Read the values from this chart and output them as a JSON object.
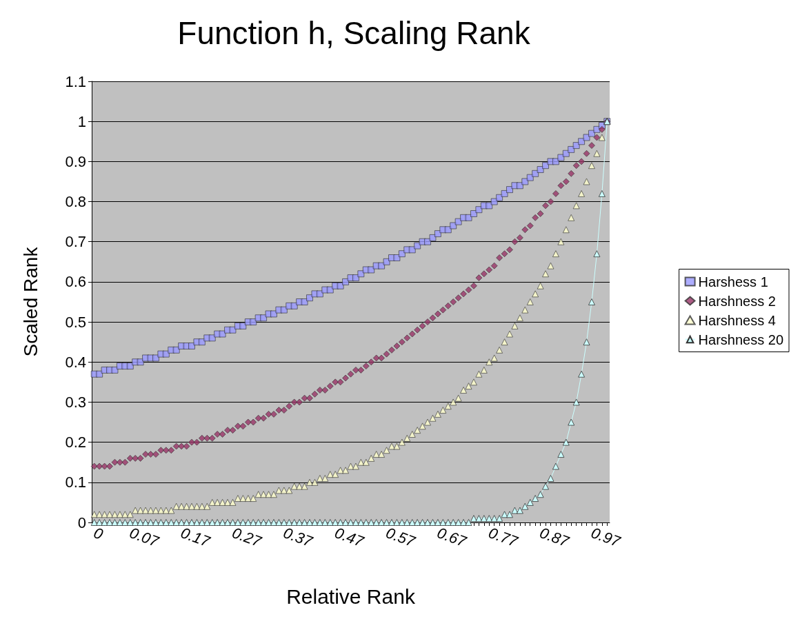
{
  "chart_data": {
    "type": "line",
    "title": "Function h, Scaling Rank",
    "xlabel": "Relative Rank",
    "ylabel": "Scaled Rank",
    "categories": [
      "0",
      null,
      null,
      null,
      null,
      null,
      null,
      "0.07",
      null,
      null,
      null,
      null,
      null,
      null,
      null,
      null,
      null,
      "0.17",
      null,
      null,
      null,
      null,
      null,
      null,
      null,
      null,
      null,
      "0.27",
      null,
      null,
      null,
      null,
      null,
      null,
      null,
      null,
      null,
      "0.37",
      null,
      null,
      null,
      null,
      null,
      null,
      null,
      null,
      null,
      "0.47",
      null,
      null,
      null,
      null,
      null,
      null,
      null,
      null,
      null,
      "0.57",
      null,
      null,
      null,
      null,
      null,
      null,
      null,
      null,
      null,
      "0.67",
      null,
      null,
      null,
      null,
      null,
      null,
      null,
      null,
      null,
      "0.77",
      null,
      null,
      null,
      null,
      null,
      null,
      null,
      null,
      null,
      "0.87",
      null,
      null,
      null,
      null,
      null,
      null,
      null,
      null,
      null,
      "0.97",
      null,
      null,
      null
    ],
    "series": [
      {
        "name": "Harshess 1",
        "type": "scatter",
        "marker": "square",
        "color": "#9999ff",
        "values": [
          0.37,
          0.37,
          0.38,
          0.38,
          0.38,
          0.39,
          0.39,
          0.39,
          0.4,
          0.4,
          0.41,
          0.41,
          0.41,
          0.42,
          0.42,
          0.43,
          0.43,
          0.44,
          0.44,
          0.44,
          0.45,
          0.45,
          0.46,
          0.46,
          0.47,
          0.47,
          0.48,
          0.48,
          0.49,
          0.49,
          0.5,
          0.5,
          0.51,
          0.51,
          0.52,
          0.52,
          0.53,
          0.53,
          0.54,
          0.54,
          0.55,
          0.55,
          0.56,
          0.57,
          0.57,
          0.58,
          0.58,
          0.59,
          0.59,
          0.6,
          0.61,
          0.61,
          0.62,
          0.63,
          0.63,
          0.64,
          0.64,
          0.65,
          0.66,
          0.66,
          0.67,
          0.68,
          0.68,
          0.69,
          0.7,
          0.7,
          0.71,
          0.72,
          0.73,
          0.73,
          0.74,
          0.75,
          0.76,
          0.76,
          0.77,
          0.78,
          0.79,
          0.79,
          0.8,
          0.81,
          0.82,
          0.83,
          0.84,
          0.84,
          0.85,
          0.86,
          0.87,
          0.88,
          0.89,
          0.9,
          0.9,
          0.91,
          0.92,
          0.93,
          0.94,
          0.95,
          0.96,
          0.97,
          0.98,
          0.99,
          1.0
        ]
      },
      {
        "name": "Harshness 2",
        "type": "scatter",
        "marker": "diamond",
        "color": "#993366",
        "values": [
          0.14,
          0.14,
          0.14,
          0.14,
          0.15,
          0.15,
          0.15,
          0.16,
          0.16,
          0.16,
          0.17,
          0.17,
          0.17,
          0.18,
          0.18,
          0.18,
          0.19,
          0.19,
          0.19,
          0.2,
          0.2,
          0.21,
          0.21,
          0.21,
          0.22,
          0.22,
          0.23,
          0.23,
          0.24,
          0.24,
          0.25,
          0.25,
          0.26,
          0.26,
          0.27,
          0.27,
          0.28,
          0.28,
          0.29,
          0.3,
          0.3,
          0.31,
          0.31,
          0.32,
          0.33,
          0.33,
          0.34,
          0.35,
          0.35,
          0.36,
          0.37,
          0.38,
          0.38,
          0.39,
          0.4,
          0.41,
          0.41,
          0.42,
          0.43,
          0.44,
          0.45,
          0.46,
          0.47,
          0.48,
          0.49,
          0.5,
          0.51,
          0.52,
          0.53,
          0.54,
          0.55,
          0.56,
          0.57,
          0.58,
          0.59,
          0.61,
          0.62,
          0.63,
          0.64,
          0.66,
          0.67,
          0.68,
          0.7,
          0.71,
          0.73,
          0.74,
          0.76,
          0.77,
          0.79,
          0.8,
          0.82,
          0.84,
          0.85,
          0.87,
          0.89,
          0.9,
          0.92,
          0.94,
          0.96,
          0.98,
          1.0
        ]
      },
      {
        "name": "Harshness 4",
        "type": "scatter",
        "marker": "triangle",
        "color": "#ffffcc",
        "values": [
          0.02,
          0.02,
          0.02,
          0.02,
          0.02,
          0.02,
          0.02,
          0.02,
          0.03,
          0.03,
          0.03,
          0.03,
          0.03,
          0.03,
          0.03,
          0.03,
          0.04,
          0.04,
          0.04,
          0.04,
          0.04,
          0.04,
          0.04,
          0.05,
          0.05,
          0.05,
          0.05,
          0.05,
          0.06,
          0.06,
          0.06,
          0.06,
          0.07,
          0.07,
          0.07,
          0.07,
          0.08,
          0.08,
          0.08,
          0.09,
          0.09,
          0.09,
          0.1,
          0.1,
          0.11,
          0.11,
          0.12,
          0.12,
          0.13,
          0.13,
          0.14,
          0.14,
          0.15,
          0.15,
          0.16,
          0.17,
          0.17,
          0.18,
          0.19,
          0.19,
          0.2,
          0.21,
          0.22,
          0.23,
          0.24,
          0.25,
          0.26,
          0.27,
          0.28,
          0.29,
          0.3,
          0.31,
          0.33,
          0.34,
          0.35,
          0.37,
          0.38,
          0.4,
          0.41,
          0.43,
          0.45,
          0.47,
          0.49,
          0.51,
          0.53,
          0.55,
          0.57,
          0.59,
          0.62,
          0.64,
          0.67,
          0.7,
          0.73,
          0.76,
          0.79,
          0.82,
          0.85,
          0.89,
          0.92,
          0.96,
          1.0
        ]
      },
      {
        "name": "Harshness 20",
        "marker": "triangle",
        "color": "#ccffff",
        "values": [
          0,
          0,
          0,
          0,
          0,
          0,
          0,
          0,
          0,
          0,
          0,
          0,
          0,
          0,
          0,
          0,
          0,
          0,
          0,
          0,
          0,
          0,
          0,
          0,
          0,
          0,
          0,
          0,
          0,
          0,
          0,
          0,
          0,
          0,
          0,
          0,
          0,
          0,
          0,
          0,
          0,
          0,
          0,
          0,
          0,
          0,
          0,
          0,
          0,
          0,
          0,
          0,
          0,
          0,
          0,
          0,
          0,
          0,
          0,
          0,
          0,
          0,
          0,
          0,
          0,
          0,
          0,
          0,
          0,
          0,
          0,
          0,
          0,
          0,
          0.01,
          0.01,
          0.01,
          0.01,
          0.01,
          0.01,
          0.02,
          0.02,
          0.03,
          0.03,
          0.04,
          0.05,
          0.06,
          0.07,
          0.09,
          0.11,
          0.14,
          0.17,
          0.2,
          0.25,
          0.3,
          0.37,
          0.45,
          0.55,
          0.67,
          0.82,
          1
        ]
      }
    ],
    "ylim": [
      0,
      1.1
    ],
    "yticks": [
      0,
      0.1,
      0.2,
      0.3,
      0.4,
      0.5,
      0.6,
      0.7,
      0.8,
      0.9,
      1,
      1.1
    ],
    "grid": "y",
    "legend": "right"
  }
}
